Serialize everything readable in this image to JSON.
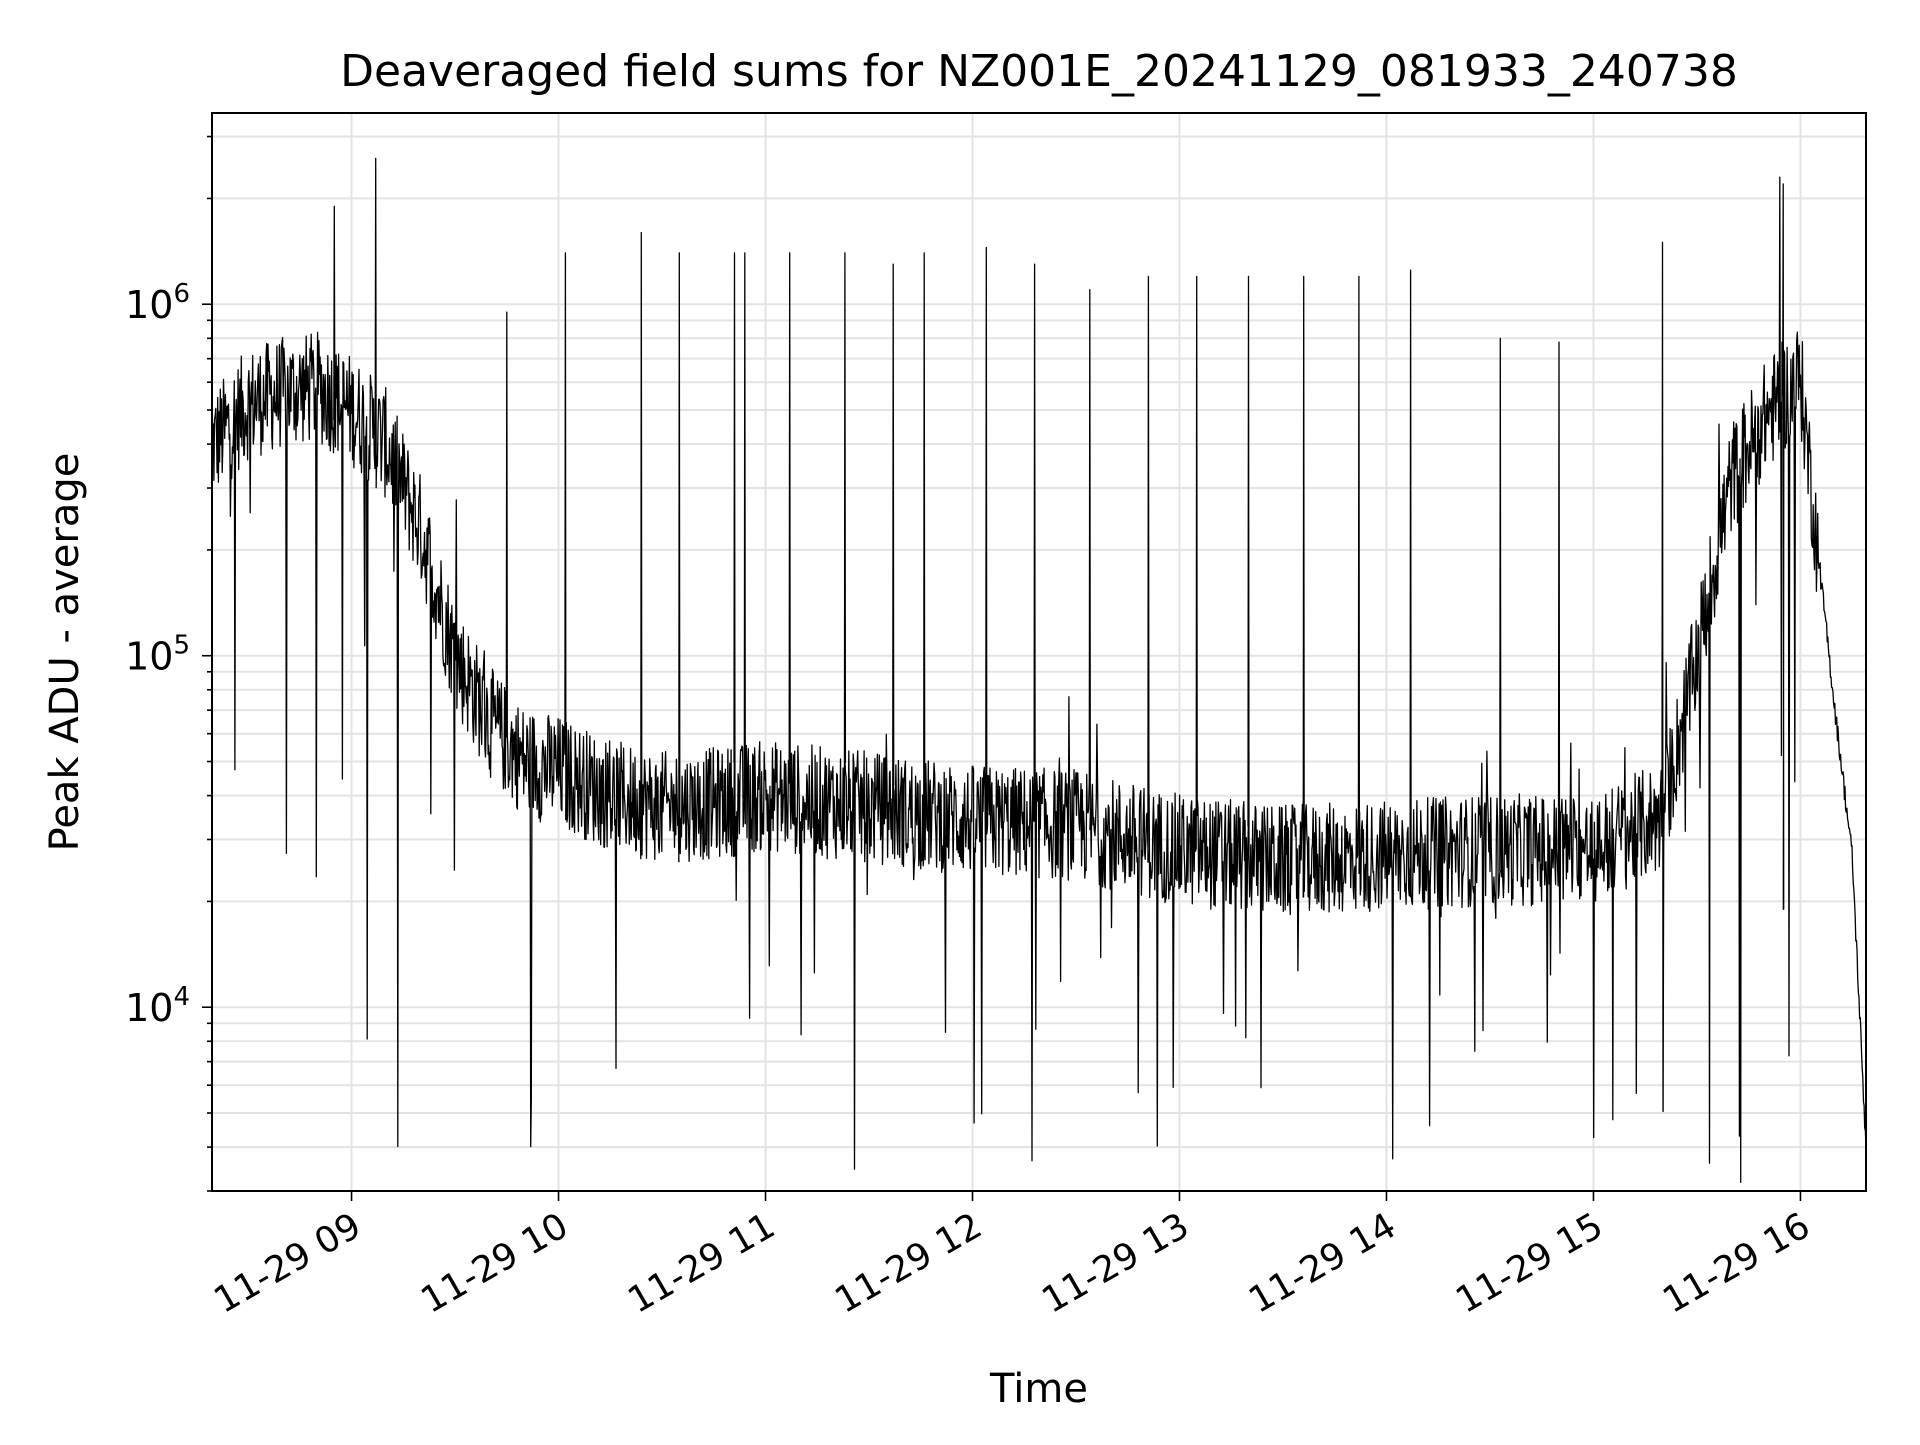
{
  "chart_data": {
    "type": "line",
    "title": "Deaveraged field sums for NZ001E_20241129_081933_240738",
    "xlabel": "Time",
    "ylabel": "Peak ADU - average",
    "yscale": "log",
    "xlim": [
      "2024-11-29 08:19:33",
      "2024-11-29 16:19:00"
    ],
    "ylim": [
      3000,
      3500000
    ],
    "grid": true,
    "line_color": "#000000",
    "x_ticks": [
      {
        "value": "2024-11-29 09:00",
        "label": "11-29 09"
      },
      {
        "value": "2024-11-29 10:00",
        "label": "11-29 10"
      },
      {
        "value": "2024-11-29 11:00",
        "label": "11-29 11"
      },
      {
        "value": "2024-11-29 12:00",
        "label": "11-29 12"
      },
      {
        "value": "2024-11-29 13:00",
        "label": "11-29 13"
      },
      {
        "value": "2024-11-29 14:00",
        "label": "11-29 14"
      },
      {
        "value": "2024-11-29 15:00",
        "label": "11-29 15"
      },
      {
        "value": "2024-11-29 16:00",
        "label": "11-29 16"
      }
    ],
    "y_ticks": [
      {
        "value": 10000,
        "base": "10",
        "exp": "4"
      },
      {
        "value": 100000,
        "base": "10",
        "exp": "5"
      },
      {
        "value": 1000000,
        "base": "10",
        "exp": "6"
      }
    ],
    "series": [
      {
        "x": [
          "2024-11-29 08:20",
          "2024-11-29 08:30",
          "2024-11-29 08:40",
          "2024-11-29 08:50",
          "2024-11-29 09:00",
          "2024-11-29 09:10",
          "2024-11-29 09:20",
          "2024-11-29 09:30",
          "2024-11-29 09:40",
          "2024-11-29 09:50",
          "2024-11-29 10:00",
          "2024-11-29 10:15",
          "2024-11-29 10:30",
          "2024-11-29 10:45",
          "2024-11-29 11:00",
          "2024-11-29 11:30",
          "2024-11-29 12:00",
          "2024-11-29 12:30",
          "2024-11-29 13:00",
          "2024-11-29 13:30",
          "2024-11-29 14:00",
          "2024-11-29 14:30",
          "2024-11-29 15:00",
          "2024-11-29 15:20",
          "2024-11-29 15:30",
          "2024-11-29 15:40",
          "2024-11-29 15:50",
          "2024-11-29 16:00",
          "2024-11-29 16:05",
          "2024-11-29 16:10",
          "2024-11-29 16:15",
          "2024-11-29 16:19"
        ],
        "values": [
          400000,
          520000,
          560000,
          580000,
          500000,
          400000,
          230000,
          100000,
          65000,
          50000,
          47000,
          40000,
          37000,
          38000,
          40000,
          37000,
          34000,
          33000,
          28000,
          26000,
          27000,
          28000,
          28000,
          35000,
          100000,
          320000,
          480000,
          620000,
          200000,
          70000,
          27000,
          4000
        ],
        "spikes": [
          {
            "x": "2024-11-29 08:55",
            "y": 1900000
          },
          {
            "x": "2024-11-29 09:07",
            "y": 2600000
          },
          {
            "x": "2024-11-29 09:45",
            "y": 950000
          },
          {
            "x": "2024-11-29 10:02",
            "y": 1400000
          },
          {
            "x": "2024-11-29 10:24",
            "y": 1600000
          },
          {
            "x": "2024-11-29 10:35",
            "y": 1400000
          },
          {
            "x": "2024-11-29 10:51",
            "y": 1400000
          },
          {
            "x": "2024-11-29 10:54",
            "y": 1400000
          },
          {
            "x": "2024-11-29 11:07",
            "y": 1400000
          },
          {
            "x": "2024-11-29 11:23",
            "y": 1400000
          },
          {
            "x": "2024-11-29 11:37",
            "y": 1300000
          },
          {
            "x": "2024-11-29 11:46",
            "y": 1400000
          },
          {
            "x": "2024-11-29 12:04",
            "y": 1450000
          },
          {
            "x": "2024-11-29 12:18",
            "y": 1300000
          },
          {
            "x": "2024-11-29 12:34",
            "y": 1100000
          },
          {
            "x": "2024-11-29 12:51",
            "y": 1200000
          },
          {
            "x": "2024-11-29 13:05",
            "y": 1200000
          },
          {
            "x": "2024-11-29 13:20",
            "y": 1200000
          },
          {
            "x": "2024-11-29 13:36",
            "y": 1200000
          },
          {
            "x": "2024-11-29 13:52",
            "y": 1200000
          },
          {
            "x": "2024-11-29 14:07",
            "y": 1250000
          },
          {
            "x": "2024-11-29 14:33",
            "y": 800000
          },
          {
            "x": "2024-11-29 14:50",
            "y": 780000
          },
          {
            "x": "2024-11-29 15:20",
            "y": 1500000
          },
          {
            "x": "2024-11-29 15:54",
            "y": 2300000
          },
          {
            "x": "2024-11-29 15:55",
            "y": 2200000
          }
        ]
      }
    ]
  }
}
